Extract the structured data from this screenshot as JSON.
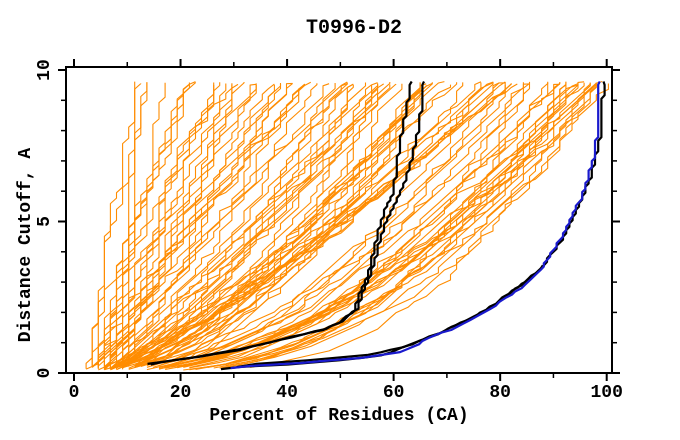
{
  "page": {
    "background": "#ffffff"
  },
  "chart_data": {
    "type": "line",
    "title": "T0996-D2",
    "xlabel": "Percent of Residues (CA)",
    "ylabel": "Distance Cutoff, A",
    "xlim": [
      0,
      100
    ],
    "ylim": [
      0,
      10
    ],
    "x_major_ticks": [
      0,
      20,
      40,
      60,
      80,
      100
    ],
    "x_minor_ticks": [
      10,
      30,
      50,
      70,
      90
    ],
    "y_major_ticks": [
      0,
      5,
      10
    ],
    "y_minor_ticks": [
      1,
      2,
      3,
      4,
      6,
      7,
      8,
      9
    ],
    "grid": false,
    "legend": "none",
    "colors": {
      "ensemble": "#ff8c00",
      "highlight_black": "#000000",
      "highlight_blue": "#1a1acd",
      "axis": "#000000",
      "background": "#ffffff"
    },
    "series": [
      {
        "name": "highlight-black-a",
        "color_key": "highlight_black",
        "line_width": 2.2,
        "points": [
          [
            13.8,
            0.3
          ],
          [
            17.8,
            0.4
          ],
          [
            23.5,
            0.53
          ],
          [
            30.9,
            0.76
          ],
          [
            36.8,
            1.0
          ],
          [
            42.4,
            1.25
          ],
          [
            46.7,
            1.42
          ],
          [
            49.8,
            1.65
          ],
          [
            52.6,
            2.08
          ],
          [
            53.3,
            2.5
          ],
          [
            55.1,
            3.17
          ],
          [
            55.9,
            3.73
          ],
          [
            57.0,
            4.62
          ],
          [
            57.7,
            5.05
          ],
          [
            58.7,
            5.5
          ],
          [
            59.8,
            5.9
          ],
          [
            60.5,
            6.7
          ],
          [
            61.2,
            7.6
          ],
          [
            62.4,
            8.7
          ],
          [
            63.4,
            9.62
          ]
        ]
      },
      {
        "name": "highlight-black-b",
        "color_key": "highlight_black",
        "line_width": 2.2,
        "points": [
          [
            14.2,
            0.28
          ],
          [
            18.6,
            0.42
          ],
          [
            24.2,
            0.56
          ],
          [
            31.4,
            0.79
          ],
          [
            37.3,
            1.03
          ],
          [
            42.9,
            1.28
          ],
          [
            47.3,
            1.46
          ],
          [
            50.4,
            1.7
          ],
          [
            53.1,
            2.12
          ],
          [
            53.9,
            2.54
          ],
          [
            55.7,
            3.22
          ],
          [
            56.6,
            3.78
          ],
          [
            57.9,
            4.68
          ],
          [
            59.0,
            5.12
          ],
          [
            60.5,
            5.65
          ],
          [
            62.0,
            6.25
          ],
          [
            63.3,
            7.05
          ],
          [
            64.4,
            7.85
          ],
          [
            65.2,
            8.65
          ],
          [
            65.7,
            9.62
          ]
        ]
      },
      {
        "name": "highlight-black-d",
        "color_key": "highlight_black",
        "line_width": 2.2,
        "points": [
          [
            27.8,
            0.13
          ],
          [
            31.0,
            0.2
          ],
          [
            40.0,
            0.28
          ],
          [
            50.0,
            0.42
          ],
          [
            57.8,
            0.58
          ],
          [
            63.4,
            0.95
          ],
          [
            68.4,
            1.28
          ],
          [
            72.4,
            1.64
          ],
          [
            77.4,
            2.08
          ],
          [
            81.4,
            2.58
          ],
          [
            85.4,
            3.1
          ],
          [
            88.0,
            3.55
          ]
        ]
      },
      {
        "name": "highlight-black-c",
        "color_key": "highlight_black",
        "line_width": 2.2,
        "points": [
          [
            30.4,
            0.2
          ],
          [
            34.2,
            0.3
          ],
          [
            44.0,
            0.42
          ],
          [
            55.0,
            0.6
          ],
          [
            62.0,
            0.85
          ],
          [
            65.5,
            1.1
          ],
          [
            68.2,
            1.3
          ],
          [
            71.6,
            1.55
          ],
          [
            75.5,
            1.9
          ],
          [
            79.0,
            2.28
          ],
          [
            80.6,
            2.5
          ],
          [
            85.0,
            3.05
          ],
          [
            88.0,
            3.55
          ],
          [
            89.6,
            3.9
          ],
          [
            91.9,
            4.5
          ],
          [
            93.7,
            5.15
          ],
          [
            95.8,
            5.95
          ],
          [
            96.9,
            6.45
          ],
          [
            98.0,
            7.2
          ],
          [
            98.9,
            7.9
          ],
          [
            99.2,
            8.6
          ],
          [
            99.4,
            9.62
          ]
        ]
      },
      {
        "name": "highlight-blue",
        "color_key": "highlight_blue",
        "line_width": 2.2,
        "points": [
          [
            29.6,
            0.16
          ],
          [
            33.0,
            0.23
          ],
          [
            42.4,
            0.33
          ],
          [
            53.7,
            0.5
          ],
          [
            61.2,
            0.69
          ],
          [
            64.5,
            0.95
          ],
          [
            66.8,
            1.16
          ],
          [
            70.5,
            1.42
          ],
          [
            74.3,
            1.75
          ],
          [
            78.0,
            2.1
          ],
          [
            79.9,
            2.34
          ],
          [
            81.0,
            2.48
          ],
          [
            84.6,
            2.9
          ],
          [
            87.4,
            3.4
          ],
          [
            88.9,
            3.73
          ],
          [
            91.2,
            4.39
          ],
          [
            93.1,
            5.05
          ],
          [
            95.5,
            5.87
          ],
          [
            96.4,
            6.37
          ],
          [
            97.5,
            7.1
          ],
          [
            98.3,
            7.9
          ],
          [
            98.3,
            9.0
          ],
          [
            98.7,
            9.62
          ]
        ]
      }
    ],
    "ensemble": {
      "count": 100,
      "seed": 19960996,
      "final_percent_groups": [
        {
          "fraction": 0.13,
          "range": [
            11,
            26
          ]
        },
        {
          "fraction": 0.44,
          "range": [
            26,
            78
          ]
        },
        {
          "fraction": 0.43,
          "range": [
            78,
            100.3
          ]
        }
      ],
      "start_percent_range": [
        2.5,
        8.5
      ],
      "cutoff_range": [
        0.1,
        9.62
      ],
      "residue_quantum_percent": 1.14
    }
  }
}
